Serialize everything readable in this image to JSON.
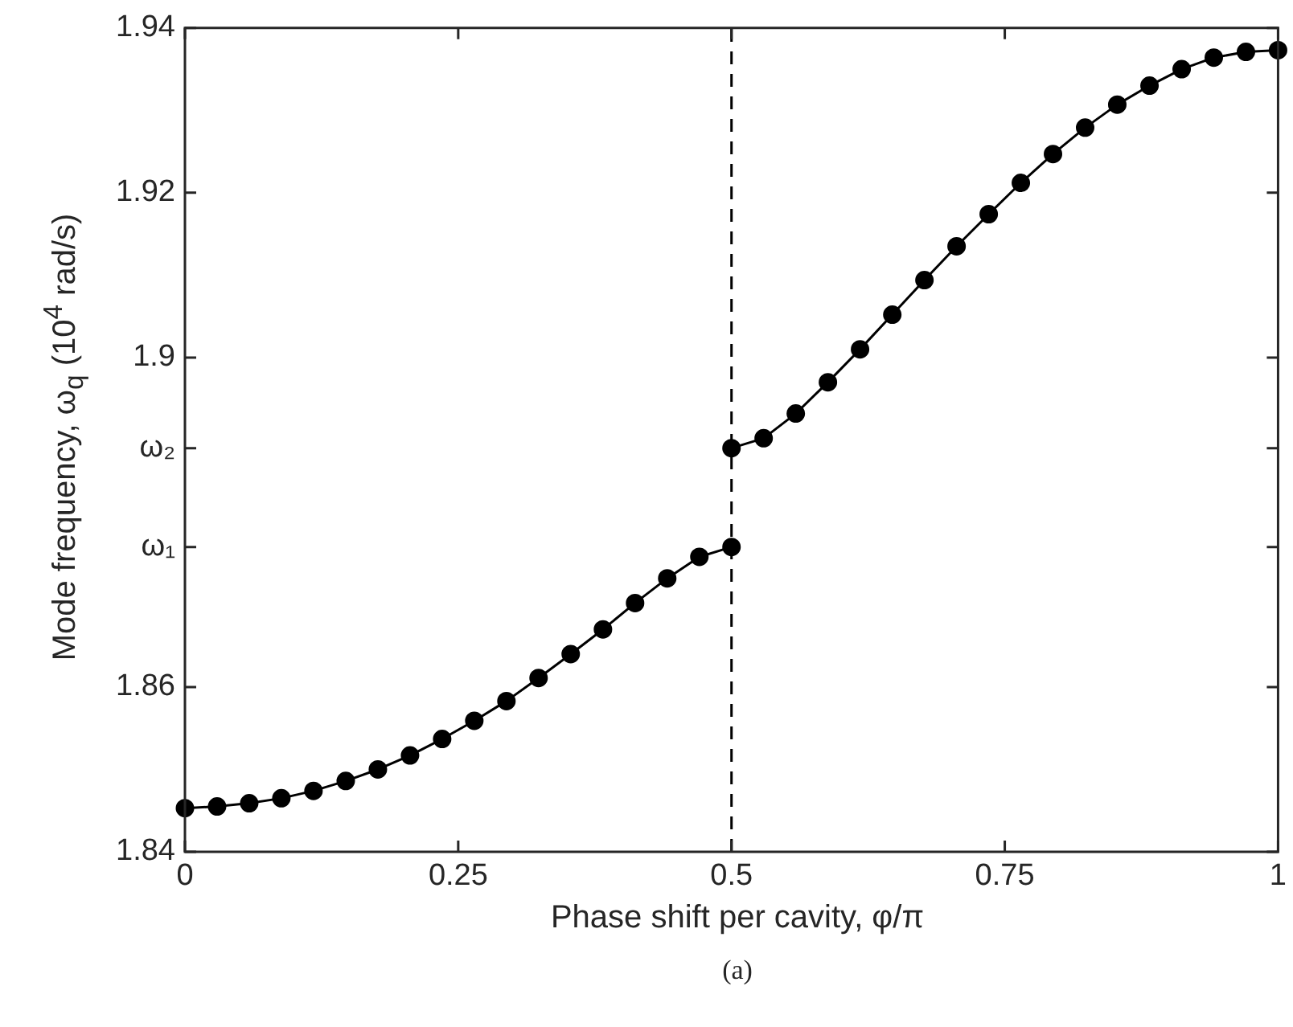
{
  "chart_data": {
    "type": "line",
    "xlabel": "Phase shift per cavity, φ/π",
    "ylabel": "Mode frequency, ω$_{q}$ (10$^{4}$ rad/s)",
    "annotations": [
      "(a)"
    ],
    "xlim": [
      0,
      1
    ],
    "xticks": [
      0,
      0.25,
      0.5,
      0.75,
      1
    ],
    "ylim": [
      1.84,
      1.94
    ],
    "yticks": [
      1.84,
      1.86,
      {
        "value": 1.877,
        "label": "ω₁"
      },
      {
        "value": 1.889,
        "label": "ω₂"
      },
      1.9,
      1.92,
      1.94
    ],
    "grid": false,
    "legend": false,
    "marker": "circle",
    "line_style": "solid",
    "ref_lines": [
      {
        "axis": "x",
        "value": 0.5,
        "line_style": "dashed",
        "color": "#000000"
      }
    ],
    "series": [
      {
        "color": "#000000",
        "x": [
          0,
          0.0294,
          0.0588,
          0.0882,
          0.1176,
          0.1471,
          0.1765,
          0.2059,
          0.2353,
          0.2647,
          0.2941,
          0.3235,
          0.3529,
          0.3824,
          0.4118,
          0.4412,
          0.4706,
          0.5
        ],
        "values": [
          1.8453,
          1.8455,
          1.8459,
          1.8465,
          1.8474,
          1.8486,
          1.85,
          1.8517,
          1.8537,
          1.8559,
          1.8583,
          1.8611,
          1.864,
          1.867,
          1.8702,
          1.8732,
          1.8758,
          1.877
        ]
      },
      {
        "color": "#000000",
        "x": [
          0.5,
          0.5294,
          0.5588,
          0.5882,
          0.6176,
          0.6471,
          0.6765,
          0.7059,
          0.7353,
          0.7647,
          0.7941,
          0.8235,
          0.8529,
          0.8824,
          0.9118,
          0.9412,
          0.9706,
          1
        ],
        "values": [
          1.889,
          1.8902,
          1.8932,
          1.897,
          1.901,
          1.9052,
          1.9094,
          1.9135,
          1.9174,
          1.9212,
          1.9247,
          1.9279,
          1.9307,
          1.933,
          1.935,
          1.9364,
          1.9371,
          1.9373
        ]
      }
    ]
  }
}
